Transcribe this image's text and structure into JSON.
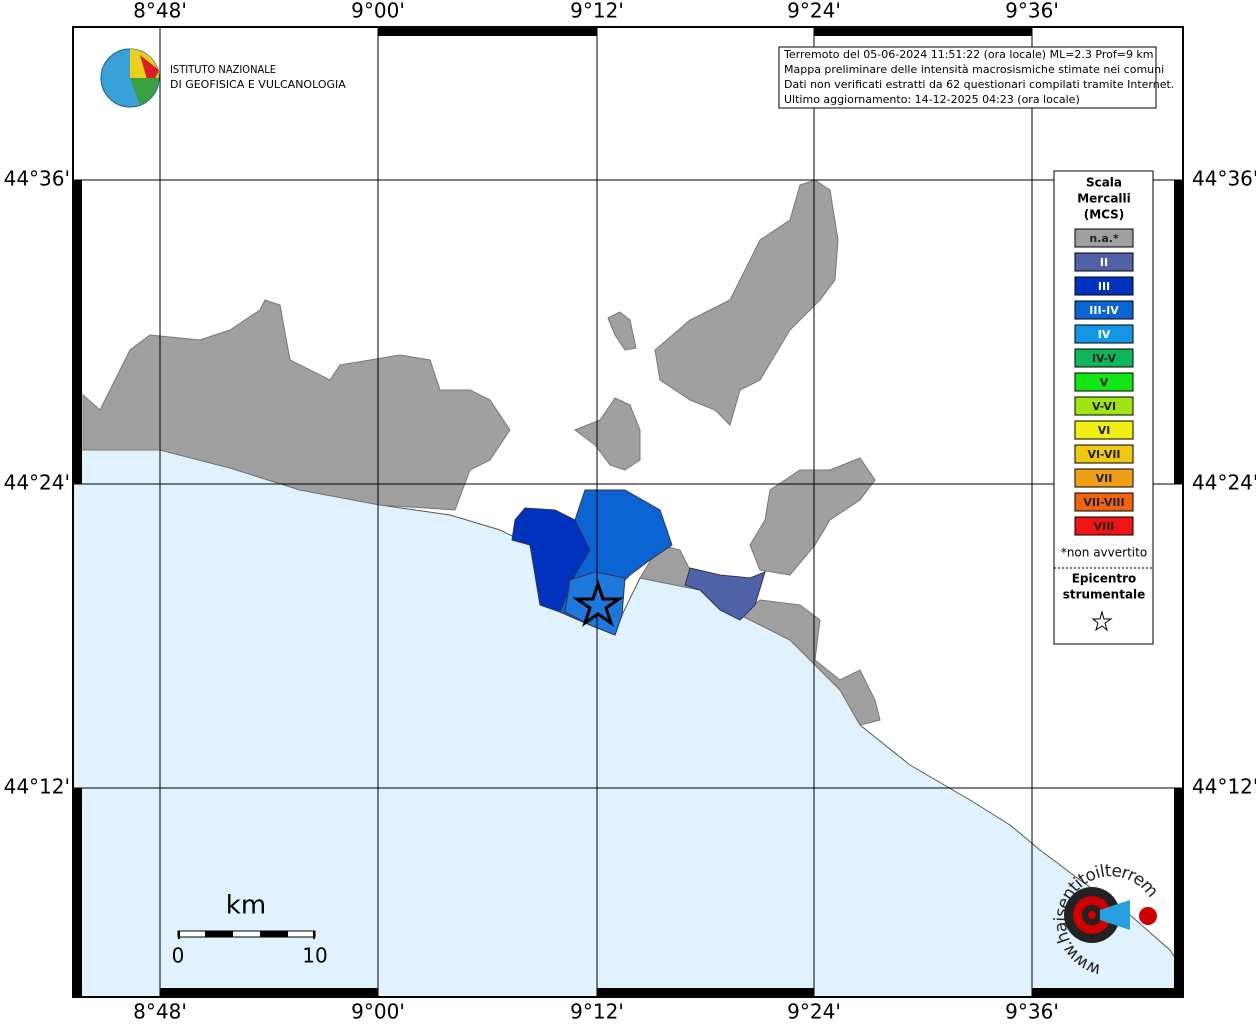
{
  "logo": {
    "line1": "ISTITUTO NAZIONALE",
    "line2": "DI GEOFISICA E VULCANOLOGIA"
  },
  "info_box": {
    "lines": [
      "Terremoto del 05-06-2024 11:51:22 (ora locale) ML=2.3 Prof=9 km",
      "Mappa preliminare delle intensità macrosismiche stimate nei comuni",
      "Dati non verificati estratti da 62 questionari compilati tramite Internet.",
      "Ultimo aggiornamento: 14-12-2025 04:23 (ora locale)"
    ]
  },
  "axes": {
    "longitude_labels": [
      "8°48'",
      "9°00'",
      "9°12'",
      "9°24'",
      "9°36'"
    ],
    "latitude_labels": [
      "44°36'",
      "44°24'",
      "44°12'"
    ]
  },
  "legend": {
    "title": [
      "Scala",
      "Mercalli",
      "(MCS)"
    ],
    "items": [
      {
        "label": "n.a.*",
        "color": "#a0a0a0"
      },
      {
        "label": "II",
        "color": "#4f62a8"
      },
      {
        "label": "III",
        "color": "#0032be"
      },
      {
        "label": "III-IV",
        "color": "#0a64d2"
      },
      {
        "label": "IV",
        "color": "#1496e6"
      },
      {
        "label": "IV-V",
        "color": "#10b45a"
      },
      {
        "label": "V",
        "color": "#14e614"
      },
      {
        "label": "V-VI",
        "color": "#a0e614"
      },
      {
        "label": "VI",
        "color": "#f0f014"
      },
      {
        "label": "VI-VII",
        "color": "#f0c814"
      },
      {
        "label": "VII",
        "color": "#f0a014"
      },
      {
        "label": "VII-VIII",
        "color": "#f06414"
      },
      {
        "label": "VIII",
        "color": "#f01414"
      }
    ],
    "note": "*non avvertito",
    "epicenter": [
      "Epicentro",
      "strumentale"
    ]
  },
  "scale_bar": {
    "unit": "km",
    "start": "0",
    "end": "10"
  },
  "watermark": "www.haisentitoilterremoto.it"
}
